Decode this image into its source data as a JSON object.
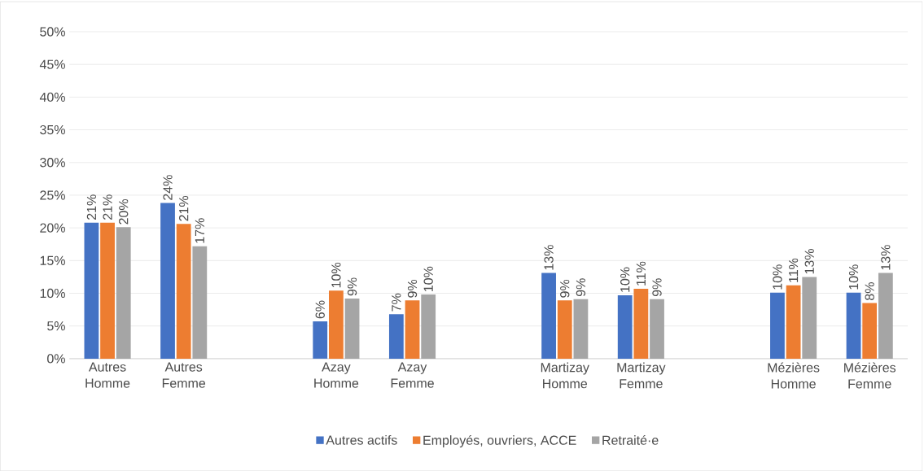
{
  "chart_data": {
    "type": "bar",
    "categories": [
      "Autres Homme",
      "Autres Femme",
      null,
      "Azay Homme",
      "Azay Femme",
      null,
      "Martizay Homme",
      "Martizay Femme",
      null,
      "Mézières Homme",
      "Mézières Femme"
    ],
    "series": [
      {
        "name": "Autres actifs",
        "color": "#4472c4",
        "values": [
          20.8,
          23.8,
          null,
          5.7,
          6.8,
          null,
          13.1,
          9.7,
          null,
          10.1,
          10.1
        ],
        "value_labels": [
          "21%",
          "24%",
          null,
          "6%",
          "7%",
          null,
          "13%",
          "10%",
          null,
          "10%",
          "10%"
        ]
      },
      {
        "name": "Employés, ouvriers, ACCE",
        "color": "#ed7d31",
        "values": [
          20.8,
          20.6,
          null,
          10.4,
          8.9,
          null,
          8.9,
          10.7,
          null,
          11.2,
          8.5
        ],
        "value_labels": [
          "21%",
          "21%",
          null,
          "10%",
          "9%",
          null,
          "9%",
          "11%",
          null,
          "11%",
          "8%"
        ]
      },
      {
        "name": "Retraité·e",
        "color": "#a5a5a5",
        "values": [
          20.1,
          17.2,
          null,
          9.2,
          9.8,
          null,
          9.1,
          9.1,
          null,
          12.5,
          13.1
        ],
        "value_labels": [
          "20%",
          "17%",
          null,
          "9%",
          "10%",
          null,
          "9%",
          "9%",
          null,
          "13%",
          "13%"
        ]
      }
    ],
    "ylim": [
      0,
      50
    ],
    "yticks": [
      {
        "value": 0,
        "label": "0%"
      },
      {
        "value": 5,
        "label": "5%"
      },
      {
        "value": 10,
        "label": "10%"
      },
      {
        "value": 15,
        "label": "15%"
      },
      {
        "value": 20,
        "label": "20%"
      },
      {
        "value": 25,
        "label": "25%"
      },
      {
        "value": 30,
        "label": "30%"
      },
      {
        "value": 35,
        "label": "35%"
      },
      {
        "value": 40,
        "label": "40%"
      },
      {
        "value": 45,
        "label": "45%"
      },
      {
        "value": 50,
        "label": "50%"
      }
    ],
    "grid": "y",
    "legend": "bottom"
  }
}
